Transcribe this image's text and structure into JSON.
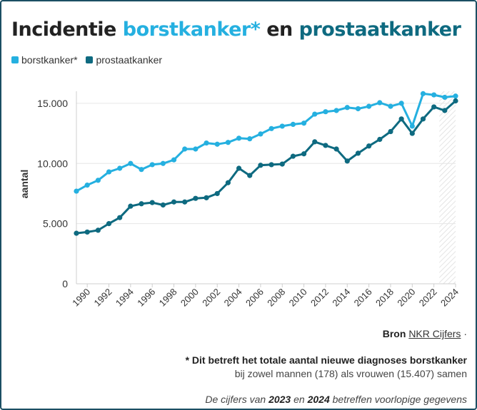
{
  "title": {
    "part1": "Incidentie ",
    "part2": "borstkanker*",
    "part3": " en ",
    "part4": "prostaatkanker"
  },
  "legend": [
    {
      "label": "borstkanker*",
      "color": "#25b0e0"
    },
    {
      "label": "prostaatkanker",
      "color": "#0e6a80"
    }
  ],
  "chart_data": {
    "type": "line",
    "ylabel": "aantal",
    "xlabel": "",
    "ylim": [
      0,
      16000
    ],
    "yticks": [
      0,
      5000,
      10000,
      15000
    ],
    "ytick_labels": [
      "0",
      "5.000",
      "10.000",
      "15.000"
    ],
    "xlim": [
      1989,
      2024
    ],
    "xticks": [
      1990,
      1992,
      1994,
      1996,
      1998,
      2000,
      2002,
      2004,
      2006,
      2008,
      2010,
      2012,
      2014,
      2016,
      2018,
      2020,
      2022,
      2024
    ],
    "x": [
      1989,
      1990,
      1991,
      1992,
      1993,
      1994,
      1995,
      1996,
      1997,
      1998,
      1999,
      2000,
      2001,
      2002,
      2003,
      2004,
      2005,
      2006,
      2007,
      2008,
      2009,
      2010,
      2011,
      2012,
      2013,
      2014,
      2015,
      2016,
      2017,
      2018,
      2019,
      2020,
      2021,
      2022,
      2023,
      2024
    ],
    "series": [
      {
        "name": "borstkanker*",
        "color": "#25b0e0",
        "values": [
          7700,
          8200,
          8600,
          9300,
          9600,
          10000,
          9500,
          9900,
          10000,
          10300,
          11200,
          11200,
          11700,
          11600,
          11750,
          12100,
          12050,
          12450,
          12900,
          13100,
          13250,
          13350,
          14100,
          14300,
          14400,
          14650,
          14550,
          14750,
          15050,
          14750,
          15000,
          13100,
          15800,
          15700,
          15500,
          15600
        ]
      },
      {
        "name": "prostaatkanker",
        "color": "#0e6a80",
        "values": [
          4200,
          4300,
          4450,
          5000,
          5500,
          6450,
          6650,
          6750,
          6550,
          6800,
          6800,
          7100,
          7150,
          7500,
          8400,
          9600,
          9000,
          9850,
          9900,
          9950,
          10600,
          10800,
          11800,
          11500,
          11200,
          10200,
          10850,
          11450,
          12000,
          12650,
          13700,
          12500,
          13700,
          14700,
          14400,
          15200
        ]
      }
    ],
    "preliminary_years": [
      2023,
      2024
    ]
  },
  "footer": {
    "source_label": "Bron",
    "source_link": "NKR Cijfers",
    "source_sep": " ·",
    "note_bold": "* Dit betreft het totale aantal nieuwe diagnoses borstkanker",
    "note_rest": "bij zowel mannen (178) als vrouwen (15.407) samen",
    "prelim_pre": "De cijfers van ",
    "prelim_y1": "2023",
    "prelim_mid": " en ",
    "prelim_y2": "2024",
    "prelim_post": " betreffen voorlopige gegevens"
  }
}
